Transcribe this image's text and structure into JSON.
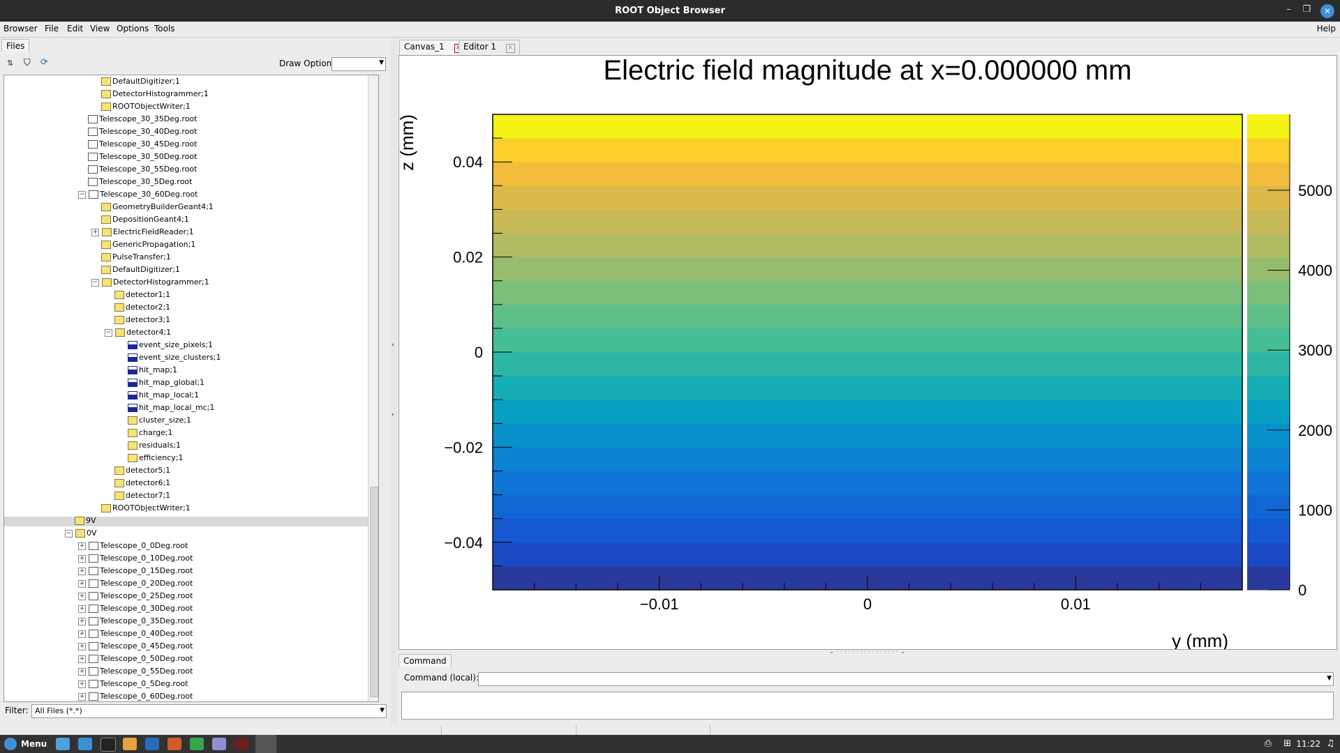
{
  "window": {
    "title": "ROOT Object Browser"
  },
  "menubar": {
    "browser": "Browser",
    "file": "File",
    "edit": "Edit",
    "view": "View",
    "options": "Options",
    "tools": "Tools",
    "help": "Help"
  },
  "left": {
    "tab": "Files",
    "draw_option_label": "Draw Option:",
    "filter_label": "Filter:",
    "filter_value": "All Files (*.*)",
    "tree": [
      {
        "label": "DefaultDigitizer;1",
        "icon": "folder",
        "level": 3
      },
      {
        "label": "DetectorHistogrammer;1",
        "icon": "folder",
        "level": 3
      },
      {
        "label": "ROOTObjectWriter;1",
        "icon": "folder",
        "level": 3
      },
      {
        "label": "Telescope_30_35Deg.root",
        "icon": "root-file",
        "level": 2
      },
      {
        "label": "Telescope_30_40Deg.root",
        "icon": "root-file",
        "level": 2
      },
      {
        "label": "Telescope_30_45Deg.root",
        "icon": "root-file",
        "level": 2
      },
      {
        "label": "Telescope_30_50Deg.root",
        "icon": "root-file",
        "level": 2
      },
      {
        "label": "Telescope_30_55Deg.root",
        "icon": "root-file",
        "level": 2
      },
      {
        "label": "Telescope_30_5Deg.root",
        "icon": "root-file",
        "level": 2
      },
      {
        "label": "Telescope_30_60Deg.root",
        "icon": "root-file",
        "level": 2,
        "pm": "−"
      },
      {
        "label": "GeometryBuilderGeant4;1",
        "icon": "folder",
        "level": 3
      },
      {
        "label": "DepositionGeant4;1",
        "icon": "folder",
        "level": 3
      },
      {
        "label": "ElectricFieldReader;1",
        "icon": "folder",
        "level": 3,
        "pm": "+"
      },
      {
        "label": "GenericPropagation;1",
        "icon": "folder",
        "level": 3
      },
      {
        "label": "PulseTransfer;1",
        "icon": "folder",
        "level": 3
      },
      {
        "label": "DefaultDigitizer;1",
        "icon": "folder",
        "level": 3
      },
      {
        "label": "DetectorHistogrammer;1",
        "icon": "folder",
        "level": 3,
        "pm": "−"
      },
      {
        "label": "detector1;1",
        "icon": "folder",
        "level": 4
      },
      {
        "label": "detector2;1",
        "icon": "folder",
        "level": 4
      },
      {
        "label": "detector3;1",
        "icon": "folder",
        "level": 4
      },
      {
        "label": "detector4;1",
        "icon": "folder",
        "level": 4,
        "pm": "−"
      },
      {
        "label": "event_size_pixels;1",
        "icon": "hist",
        "level": 5
      },
      {
        "label": "event_size_clusters;1",
        "icon": "hist",
        "level": 5
      },
      {
        "label": "hit_map;1",
        "icon": "hist",
        "level": 5
      },
      {
        "label": "hit_map_global;1",
        "icon": "hist",
        "level": 5
      },
      {
        "label": "hit_map_local;1",
        "icon": "hist",
        "level": 5
      },
      {
        "label": "hit_map_local_mc;1",
        "icon": "hist",
        "level": 5
      },
      {
        "label": "cluster_size;1",
        "icon": "folder",
        "level": 5
      },
      {
        "label": "charge;1",
        "icon": "folder",
        "level": 5
      },
      {
        "label": "residuals;1",
        "icon": "folder",
        "level": 5
      },
      {
        "label": "efficiency;1",
        "icon": "folder",
        "level": 5
      },
      {
        "label": "detector5;1",
        "icon": "folder",
        "level": 4
      },
      {
        "label": "detector6;1",
        "icon": "folder",
        "level": 4
      },
      {
        "label": "detector7;1",
        "icon": "folder",
        "level": 4
      },
      {
        "label": "ROOTObjectWriter;1",
        "icon": "folder",
        "level": 3
      },
      {
        "label": "9V",
        "icon": "folder",
        "level": 1,
        "selected": true
      },
      {
        "label": "0V",
        "icon": "folder",
        "level": 1,
        "pm": "−"
      },
      {
        "label": "Telescope_0_0Deg.root",
        "icon": "root-file",
        "level": 2,
        "pm": "+"
      },
      {
        "label": "Telescope_0_10Deg.root",
        "icon": "root-file",
        "level": 2,
        "pm": "+"
      },
      {
        "label": "Telescope_0_15Deg.root",
        "icon": "root-file",
        "level": 2,
        "pm": "+"
      },
      {
        "label": "Telescope_0_20Deg.root",
        "icon": "root-file",
        "level": 2,
        "pm": "+"
      },
      {
        "label": "Telescope_0_25Deg.root",
        "icon": "root-file",
        "level": 2,
        "pm": "+"
      },
      {
        "label": "Telescope_0_30Deg.root",
        "icon": "root-file",
        "level": 2,
        "pm": "+"
      },
      {
        "label": "Telescope_0_35Deg.root",
        "icon": "root-file",
        "level": 2,
        "pm": "+"
      },
      {
        "label": "Telescope_0_40Deg.root",
        "icon": "root-file",
        "level": 2,
        "pm": "+"
      },
      {
        "label": "Telescope_0_45Deg.root",
        "icon": "root-file",
        "level": 2,
        "pm": "+"
      },
      {
        "label": "Telescope_0_50Deg.root",
        "icon": "root-file",
        "level": 2,
        "pm": "+"
      },
      {
        "label": "Telescope_0_55Deg.root",
        "icon": "root-file",
        "level": 2,
        "pm": "+"
      },
      {
        "label": "Telescope_0_5Deg.root",
        "icon": "root-file",
        "level": 2,
        "pm": "+"
      },
      {
        "label": "Telescope_0_60Deg.root",
        "icon": "root-file",
        "level": 2,
        "pm": "+"
      }
    ]
  },
  "tabs": {
    "canvas": "Canvas_1",
    "editor": "Editor 1"
  },
  "command": {
    "tab": "Command",
    "label": "Command (local):"
  },
  "taskbar": {
    "menu": "Menu",
    "clock": "11:22"
  },
  "chart_data": {
    "type": "heatmap",
    "title": "Electric field magnitude at x=0.000000 mm",
    "xlabel": "y (mm)",
    "ylabel": "z (mm)",
    "xlim": [
      -0.018,
      0.018
    ],
    "ylim": [
      -0.05,
      0.05
    ],
    "x_ticks": [
      "−0.01",
      "0",
      "0.01"
    ],
    "x_tick_values": [
      -0.01,
      0,
      0.01
    ],
    "y_ticks": [
      "0.04",
      "0.02",
      "0",
      "−0.02",
      "−0.04"
    ],
    "y_tick_values": [
      0.04,
      0.02,
      0,
      -0.02,
      -0.04
    ],
    "z_range": [
      0,
      5950
    ],
    "colorbar_ticks": [
      "5000",
      "4000",
      "3000",
      "2000",
      "1000",
      "0"
    ],
    "colorbar_tick_values": [
      5000,
      4000,
      3000,
      2000,
      1000,
      0
    ],
    "bands": 20,
    "colors": [
      "#2a3a9c",
      "#1b4bc4",
      "#1558cf",
      "#1266d4",
      "#0f74d6",
      "#0b82d2",
      "#0890cc",
      "#08a0c2",
      "#16adb5",
      "#2db6a6",
      "#45bd96",
      "#5fbf88",
      "#7bbf7a",
      "#96bd6e",
      "#b0bb62",
      "#c8b856",
      "#ddb94a",
      "#f2bd3c",
      "#fbcf2c",
      "#f5f215"
    ]
  }
}
